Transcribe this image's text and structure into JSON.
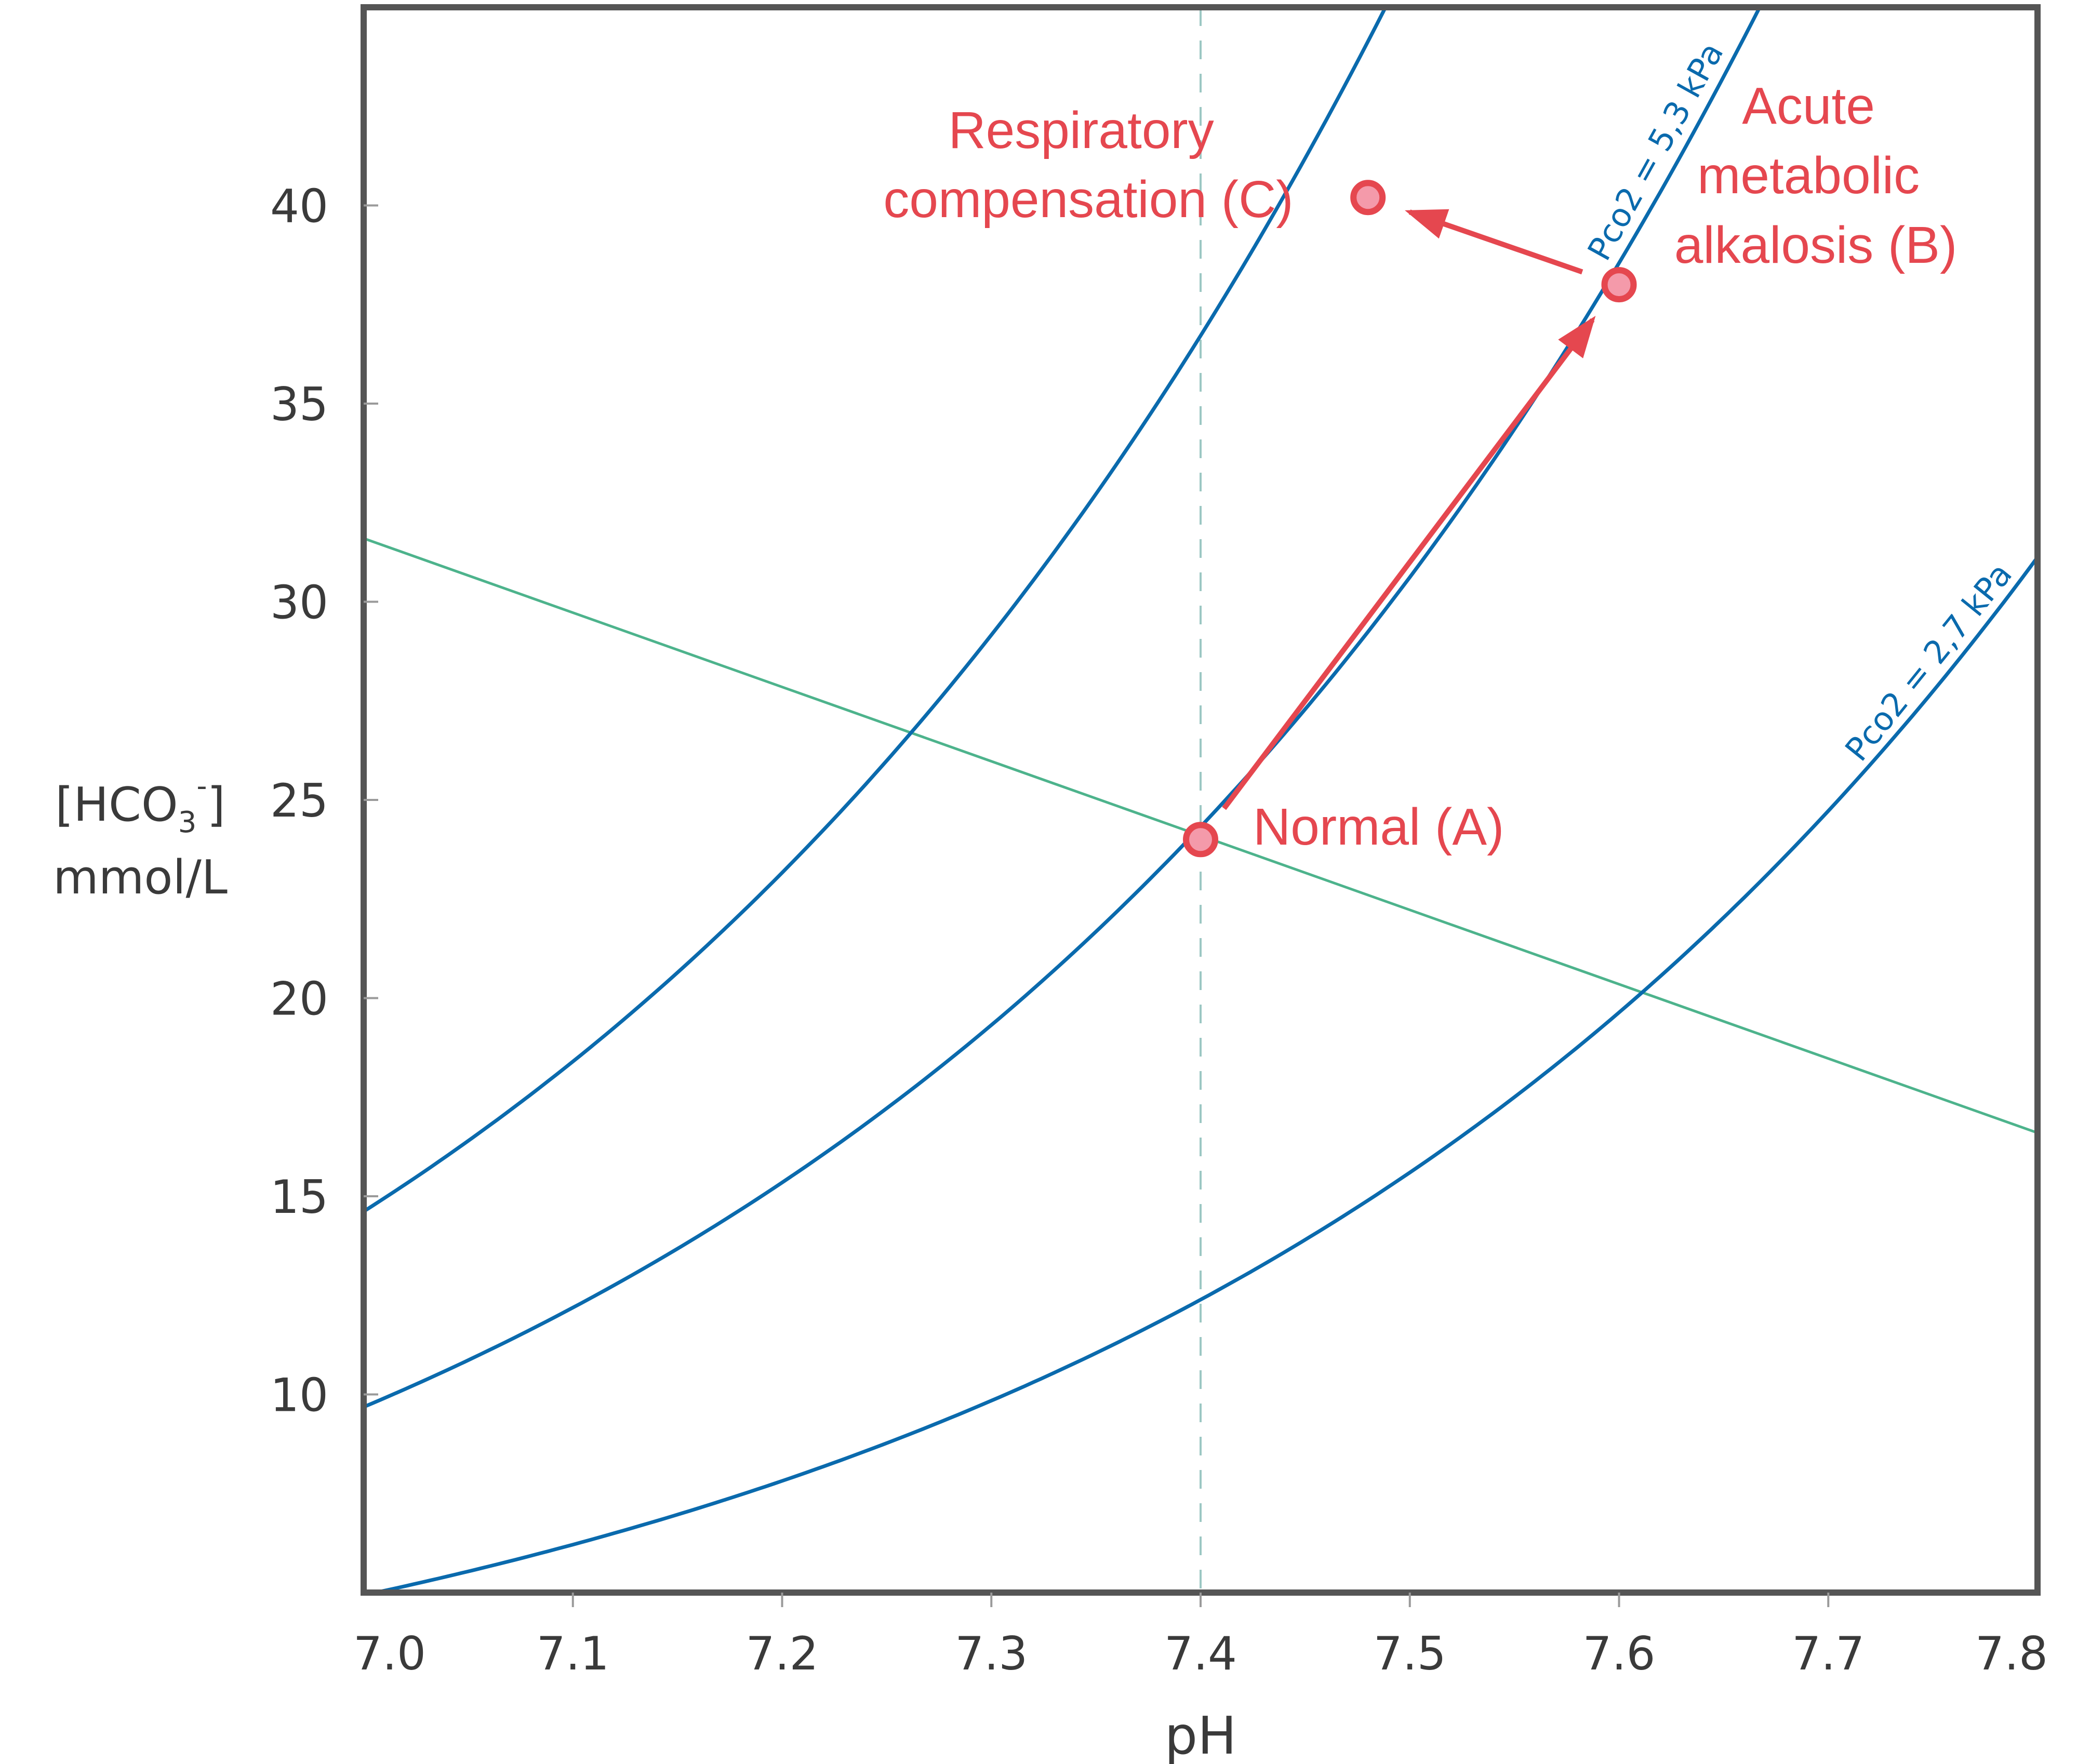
{
  "chart_data": {
    "type": "line",
    "title": "",
    "xlabel": "pH",
    "ylabel": "[HCO3-] mmol/L",
    "ylabel_parts": {
      "open": "[HCO",
      "sub": "3",
      "sup": "-",
      "close": "]",
      "unit": "mmol/L"
    },
    "xlim": [
      7.0,
      7.8
    ],
    "ylim": [
      5.0,
      45.0
    ],
    "grid": false,
    "x_ticks": [
      7.0,
      7.1,
      7.2,
      7.3,
      7.4,
      7.5,
      7.6,
      7.7,
      7.8
    ],
    "x_tick_labels": [
      "7.0",
      "7.1",
      "7.2",
      "7.3",
      "7.4",
      "7.5",
      "7.6",
      "7.7",
      "7.8"
    ],
    "y_ticks": [
      10,
      15,
      20,
      25,
      30,
      35,
      40
    ],
    "y_tick_labels": [
      "10",
      "15",
      "20",
      "25",
      "30",
      "35",
      "40"
    ],
    "isobars": [
      {
        "name": "",
        "pco2_kpa": 8.0,
        "label": ""
      },
      {
        "name": "Pco2 = 5,3 kPa",
        "pco2_kpa": 5.3,
        "label": "Pco2 = 5,3 kPa",
        "label_at_x": 7.63
      },
      {
        "name": "Pco2 = 2,7 kPa",
        "pco2_kpa": 2.7,
        "label": "Pco2 = 2,7 kPa",
        "label_at_x": 7.76
      }
    ],
    "buffer_line": {
      "points": [
        [
          7.0,
          31.6
        ],
        [
          7.8,
          16.6
        ]
      ]
    },
    "reference_line": {
      "x": 7.4
    },
    "points": [
      {
        "id": "A",
        "x": 7.4,
        "y": 24.0,
        "label": "Normal (A)"
      },
      {
        "id": "B",
        "x": 7.6,
        "y": 38.0,
        "label_lines": [
          "Acute",
          "metabolic",
          "alkalosis (B)"
        ]
      },
      {
        "id": "C",
        "x": 7.48,
        "y": 40.2,
        "label_lines": [
          "Respiratory",
          "compensation (C)"
        ]
      }
    ],
    "arrows": [
      {
        "from": "A",
        "to": "B"
      },
      {
        "from": "B",
        "to": "C"
      }
    ],
    "colors": {
      "isobar": "#0a6aad",
      "buffer_line": "#4db38c",
      "reference_line": "#9cc7c3",
      "annotation": "#e5474f",
      "point_fill": "#f49aaa",
      "frame": "#555555"
    }
  }
}
